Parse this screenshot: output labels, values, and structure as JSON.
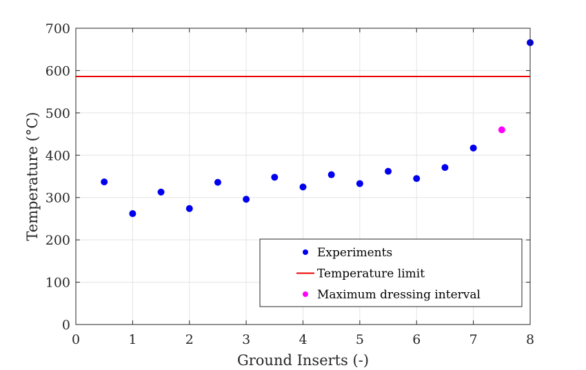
{
  "chart_data": {
    "type": "scatter",
    "xlabel": "Ground Inserts (-)",
    "ylabel": "Temperature (°C)",
    "xlim": [
      0,
      8
    ],
    "ylim": [
      0,
      700
    ],
    "x_ticks": [
      "0",
      "1",
      "2",
      "3",
      "4",
      "5",
      "6",
      "7",
      "8"
    ],
    "y_ticks": [
      "0",
      "100",
      "200",
      "300",
      "400",
      "500",
      "600",
      "700"
    ],
    "grid": true,
    "legend_position": "bottom-right",
    "series": [
      {
        "name": "Experiments",
        "kind": "scatter",
        "color": "#0000ee",
        "x": [
          0.5,
          1,
          1.5,
          2,
          2.5,
          3,
          3.5,
          4,
          4.5,
          5,
          5.5,
          6,
          6.5,
          7,
          8
        ],
        "y": [
          337,
          262,
          313,
          274,
          336,
          296,
          348,
          325,
          354,
          333,
          362,
          345,
          371,
          417,
          666
        ]
      },
      {
        "name": "Temperature limit",
        "kind": "hline",
        "color": "#ee0000",
        "y": 586
      },
      {
        "name": "Maximum dressing interval",
        "kind": "scatter",
        "color": "#ff00ff",
        "x": [
          7.5
        ],
        "y": [
          460
        ]
      }
    ]
  }
}
